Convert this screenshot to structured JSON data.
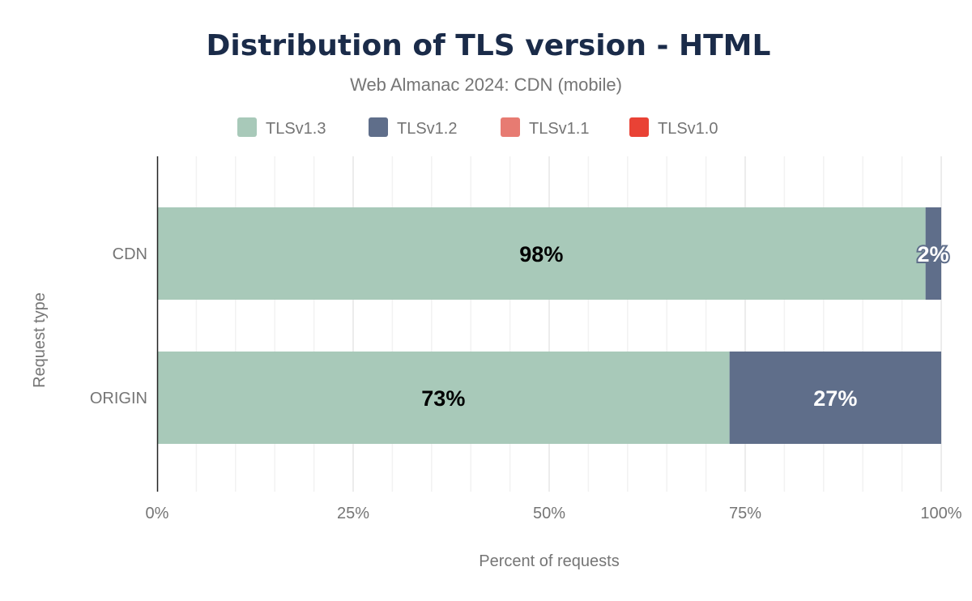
{
  "chart_data": {
    "type": "bar",
    "orientation": "horizontal",
    "stacked": true,
    "title": "Distribution of TLS version - HTML",
    "subtitle": "Web Almanac 2024: CDN (mobile)",
    "xlabel": "Percent of requests",
    "ylabel": "Request type",
    "xlim": [
      0,
      100
    ],
    "x_ticks": [
      "0%",
      "25%",
      "50%",
      "75%",
      "100%"
    ],
    "x_tick_values": [
      0,
      25,
      50,
      75,
      100
    ],
    "grid": true,
    "legend_position": "top",
    "categories": [
      "CDN",
      "ORIGIN"
    ],
    "series": [
      {
        "name": "TLSv1.3",
        "color": "#a8c9b9",
        "values": [
          98,
          73
        ],
        "labels": [
          "98%",
          "73%"
        ],
        "label_color": "#000000"
      },
      {
        "name": "TLSv1.2",
        "color": "#5f6e8a",
        "values": [
          2,
          27
        ],
        "labels": [
          "2%",
          "27%"
        ],
        "label_color": "#ffffff"
      },
      {
        "name": "TLSv1.1",
        "color": "#e77b72",
        "values": [
          0,
          0
        ],
        "labels": [
          "",
          ""
        ],
        "label_color": "#ffffff"
      },
      {
        "name": "TLSv1.0",
        "color": "#e94235",
        "values": [
          0,
          0
        ],
        "labels": [
          "",
          ""
        ],
        "label_color": "#ffffff"
      }
    ]
  }
}
